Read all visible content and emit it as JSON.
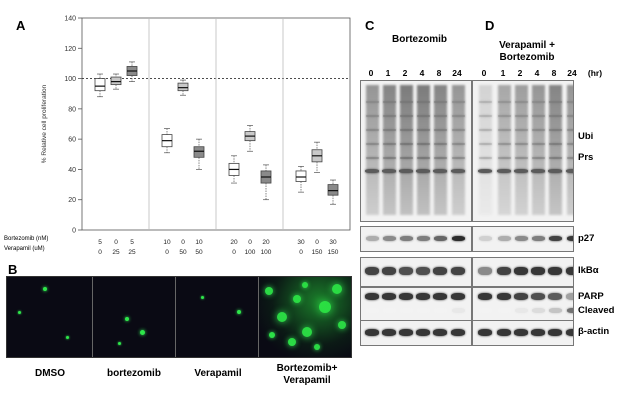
{
  "panels": {
    "a": "A",
    "b": "B",
    "c": "C",
    "d": "D"
  },
  "chart_data": {
    "type": "box",
    "title": "",
    "ylabel": "% Relative cell proliferation",
    "ylim": [
      0,
      140
    ],
    "yticks": [
      0,
      20,
      40,
      60,
      80,
      100,
      120,
      140
    ],
    "reference_line": 100,
    "row_labels": [
      "Bortezomib (nM)",
      "Verapamil (uM)"
    ],
    "groups": [
      {
        "bortezomib": [
          "5",
          "0",
          "5"
        ],
        "verapamil": [
          "0",
          "25",
          "25"
        ],
        "boxes": [
          {
            "q1": 92,
            "median": 95,
            "q3": 100,
            "min": 88,
            "max": 103,
            "shade": "#ffffff"
          },
          {
            "q1": 96,
            "median": 98,
            "q3": 101,
            "min": 93,
            "max": 103,
            "shade": "#c9c9c9"
          },
          {
            "q1": 102,
            "median": 105,
            "q3": 108,
            "min": 98,
            "max": 111,
            "shade": "#8a8a8a"
          }
        ]
      },
      {
        "bortezomib": [
          "10",
          "0",
          "10"
        ],
        "verapamil": [
          "0",
          "50",
          "50"
        ],
        "boxes": [
          {
            "q1": 55,
            "median": 59,
            "q3": 63,
            "min": 51,
            "max": 67,
            "shade": "#ffffff"
          },
          {
            "q1": 92,
            "median": 94,
            "q3": 97,
            "min": 89,
            "max": 99,
            "shade": "#c9c9c9"
          },
          {
            "q1": 48,
            "median": 52,
            "q3": 55,
            "min": 40,
            "max": 60,
            "shade": "#8a8a8a"
          }
        ]
      },
      {
        "bortezomib": [
          "20",
          "0",
          "20"
        ],
        "verapamil": [
          "0",
          "100",
          "100"
        ],
        "boxes": [
          {
            "q1": 36,
            "median": 40,
            "q3": 44,
            "min": 31,
            "max": 49,
            "shade": "#ffffff"
          },
          {
            "q1": 59,
            "median": 62,
            "q3": 65,
            "min": 52,
            "max": 69,
            "shade": "#c9c9c9"
          },
          {
            "q1": 31,
            "median": 35,
            "q3": 39,
            "min": 20,
            "max": 43,
            "shade": "#8a8a8a"
          }
        ]
      },
      {
        "bortezomib": [
          "30",
          "0",
          "30"
        ],
        "verapamil": [
          "0",
          "150",
          "150"
        ],
        "boxes": [
          {
            "q1": 32,
            "median": 35,
            "q3": 39,
            "min": 25,
            "max": 42,
            "shade": "#ffffff"
          },
          {
            "q1": 45,
            "median": 49,
            "q3": 53,
            "min": 38,
            "max": 58,
            "shade": "#c9c9c9"
          },
          {
            "q1": 23,
            "median": 26,
            "q3": 30,
            "min": 17,
            "max": 33,
            "shade": "#8a8a8a"
          }
        ]
      }
    ]
  },
  "microscopy": {
    "captions": [
      "DMSO",
      "bortezomib",
      "Verapamil",
      "Bortezomib+ Verapamil"
    ]
  },
  "blots": {
    "c_title": "Bortezomib",
    "d_title": "Verapamil + Bortezomib",
    "lanes": [
      "0",
      "1",
      "2",
      "4",
      "8",
      "24"
    ],
    "unit": "(hr)",
    "labels": {
      "ubi": "Ubi",
      "prs": "Prs",
      "p27": "p27",
      "ikba": "IkBα",
      "parp": "PARP",
      "cleaved": "Cleaved",
      "actin": "β-actin"
    }
  }
}
